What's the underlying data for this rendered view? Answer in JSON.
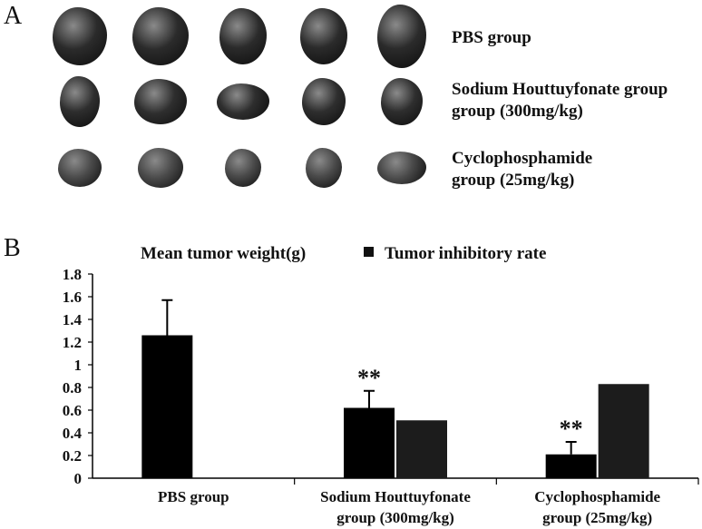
{
  "panel_a": {
    "letter": "A",
    "groups": [
      {
        "label_lines": [
          "PBS group"
        ],
        "tumor_count": 5,
        "tumor_color": "#2b2b2b"
      },
      {
        "label_lines": [
          "Sodium Houttuyfonate group",
          "group (300mg/kg)"
        ],
        "tumor_count": 5,
        "tumor_color": "#2e2e2e"
      },
      {
        "label_lines": [
          "Cyclophosphamide",
          "group (25mg/kg)"
        ],
        "tumor_count": 5,
        "tumor_color": "#4a4a4a"
      }
    ]
  },
  "panel_b": {
    "letter": "B"
  },
  "chart_data": {
    "type": "bar",
    "legend": {
      "placement": "top",
      "entries": [
        {
          "name": "Mean tumor weight(g)",
          "marker": false
        },
        {
          "name": "Tumor inhibitory rate",
          "marker": true
        }
      ]
    },
    "categories": [
      [
        "PBS group"
      ],
      [
        "Sodium Houttuyfonate",
        "group (300mg/kg)"
      ],
      [
        "Cyclophosphamide",
        "group (25mg/kg)"
      ]
    ],
    "series": [
      {
        "name": "Mean tumor weight(g)",
        "values": [
          1.26,
          0.62,
          0.21
        ],
        "errors": [
          0.31,
          0.15,
          0.11
        ],
        "color": "#000000"
      },
      {
        "name": "Tumor inhibitory rate",
        "values": [
          null,
          0.51,
          0.83
        ],
        "color": "#1c1c1c"
      }
    ],
    "significance": [
      "",
      "**",
      "**"
    ],
    "yticks": [
      "0",
      "0.2",
      "0.4",
      "0.6",
      "0.8",
      "1",
      "1.2",
      "1.4",
      "1.6",
      "1.8"
    ],
    "ylim": [
      0,
      1.8
    ],
    "grid": false,
    "xlabel": "",
    "ylabel": ""
  }
}
